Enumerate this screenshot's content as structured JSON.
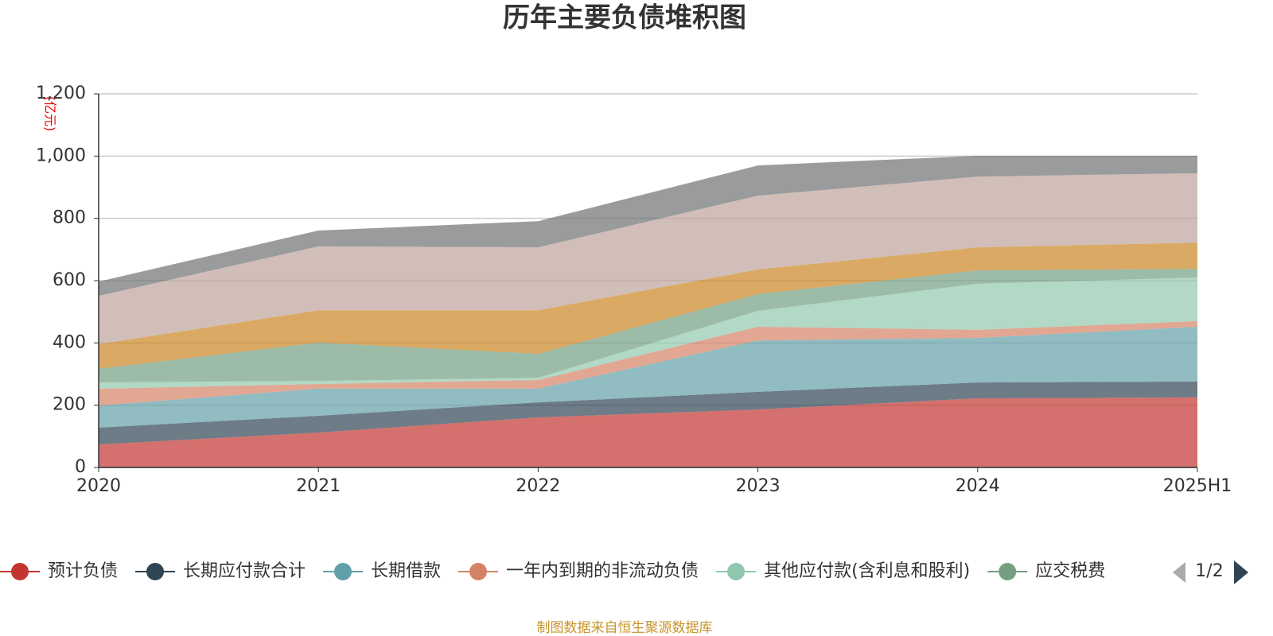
{
  "chart_data": {
    "type": "stacked-area",
    "title": "历年主要负债堆积图",
    "y_unit": "(亿元)",
    "categories": [
      "2020",
      "2021",
      "2022",
      "2023",
      "2024",
      "2025H1"
    ],
    "ylim": [
      0,
      1200
    ],
    "yticks": [
      0,
      200,
      400,
      600,
      800,
      {
        "value": 1000,
        "label": "1,000"
      },
      {
        "value": 1200,
        "label": "1,200"
      }
    ],
    "grid": true,
    "series": [
      {
        "name": "预计负债",
        "color": "#c23531",
        "values": [
          74,
          112,
          161,
          186,
          222,
          225
        ]
      },
      {
        "name": "长期应付款合计",
        "color": "#2f4554",
        "values": [
          54,
          54,
          48,
          57,
          51,
          51
        ]
      },
      {
        "name": "长期借款",
        "color": "#61a0a8",
        "values": [
          71,
          87,
          44,
          165,
          143,
          176
        ]
      },
      {
        "name": "一年内到期的非流动负债",
        "color": "#d48265",
        "values": [
          54,
          15,
          28,
          44,
          26,
          18
        ]
      },
      {
        "name": "其他应付款(含利息和股利)",
        "color": "#91c7ae",
        "values": [
          20,
          10,
          7,
          51,
          148,
          140
        ]
      },
      {
        "name": "应交税费",
        "color": "#749f83",
        "values": [
          44,
          123,
          77,
          54,
          43,
          28
        ]
      },
      {
        "color": "#ca8622",
        "values": [
          79,
          104,
          140,
          79,
          74,
          84
        ]
      },
      {
        "color": "#bda29a",
        "values": [
          155,
          205,
          202,
          237,
          227,
          223
        ]
      },
      {
        "color": "#6e7074",
        "values": [
          46,
          51,
          84,
          97,
          67,
          56
        ]
      }
    ],
    "legend_page": "1/2",
    "source": "制图数据来自恒生聚源数据库"
  }
}
